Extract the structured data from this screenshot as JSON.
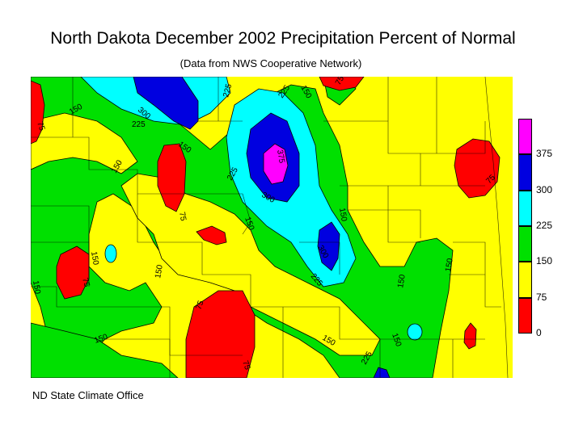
{
  "title": "North Dakota December 2002 Precipitation Percent of Normal",
  "subtitle": "(Data from NWS Cooperative Network)",
  "credit": "ND State Climate Office",
  "colors": {
    "red": "#ff0000",
    "yellow": "#ffff00",
    "green": "#00e000",
    "cyan": "#00ffff",
    "blue": "#0000e0",
    "magenta": "#ff00ff"
  },
  "legend": {
    "bins": [
      {
        "label": "0",
        "color": "#ff0000"
      },
      {
        "label": "75",
        "color": "#ffff00"
      },
      {
        "label": "150",
        "color": "#00e000"
      },
      {
        "label": "225",
        "color": "#00ffff"
      },
      {
        "label": "300",
        "color": "#0000e0"
      },
      {
        "label": "375",
        "color": "#ff00ff"
      }
    ]
  },
  "contour_labels": [
    "75",
    "150",
    "225",
    "300",
    "375"
  ]
}
